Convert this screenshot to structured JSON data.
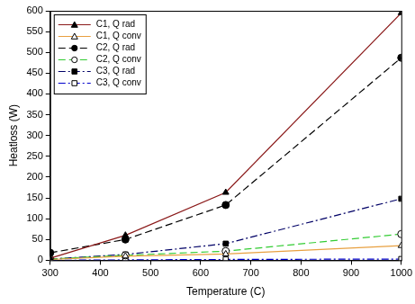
{
  "chart_data": {
    "type": "line",
    "x_label": "Temperature (C)",
    "y_label": "Heatloss (W)",
    "x": [
      300,
      450,
      650,
      1000
    ],
    "series": [
      {
        "name": "C1, Q rad",
        "color": "#8b1a1a",
        "marker": "triangle",
        "line_style": "solid",
        "values": [
          5,
          60,
          163,
          595
        ]
      },
      {
        "name": "C1, Q conv",
        "color": "#e8a040",
        "marker": "open-triangle",
        "line_style": "solid",
        "values": [
          2,
          10,
          15,
          35
        ]
      },
      {
        "name": "C2, Q rad",
        "color": "#000000",
        "marker": "circle",
        "line_style": "dashed",
        "values": [
          18,
          50,
          133,
          487
        ]
      },
      {
        "name": "C2, Q conv",
        "color": "#33cc33",
        "marker": "open-circle",
        "line_style": "dashed",
        "values": [
          3,
          12,
          22,
          63
        ]
      },
      {
        "name": "C3, Q rad",
        "color": "#000066",
        "marker": "square",
        "line_style": "dashdot",
        "values": [
          3,
          14,
          40,
          148
        ]
      },
      {
        "name": "C3, Q conv",
        "color": "#0000cc",
        "marker": "open-square",
        "line_style": "dashdot",
        "values": [
          0,
          1,
          2,
          3
        ]
      }
    ],
    "xlim": [
      300,
      1000
    ],
    "xticks": [
      300,
      400,
      500,
      600,
      700,
      800,
      900,
      1000
    ],
    "ylim": [
      0,
      600
    ],
    "yticks": [
      0,
      50,
      100,
      150,
      200,
      250,
      300,
      350,
      400,
      450,
      500,
      550,
      600
    ],
    "grid": false,
    "legend": "top-left"
  }
}
